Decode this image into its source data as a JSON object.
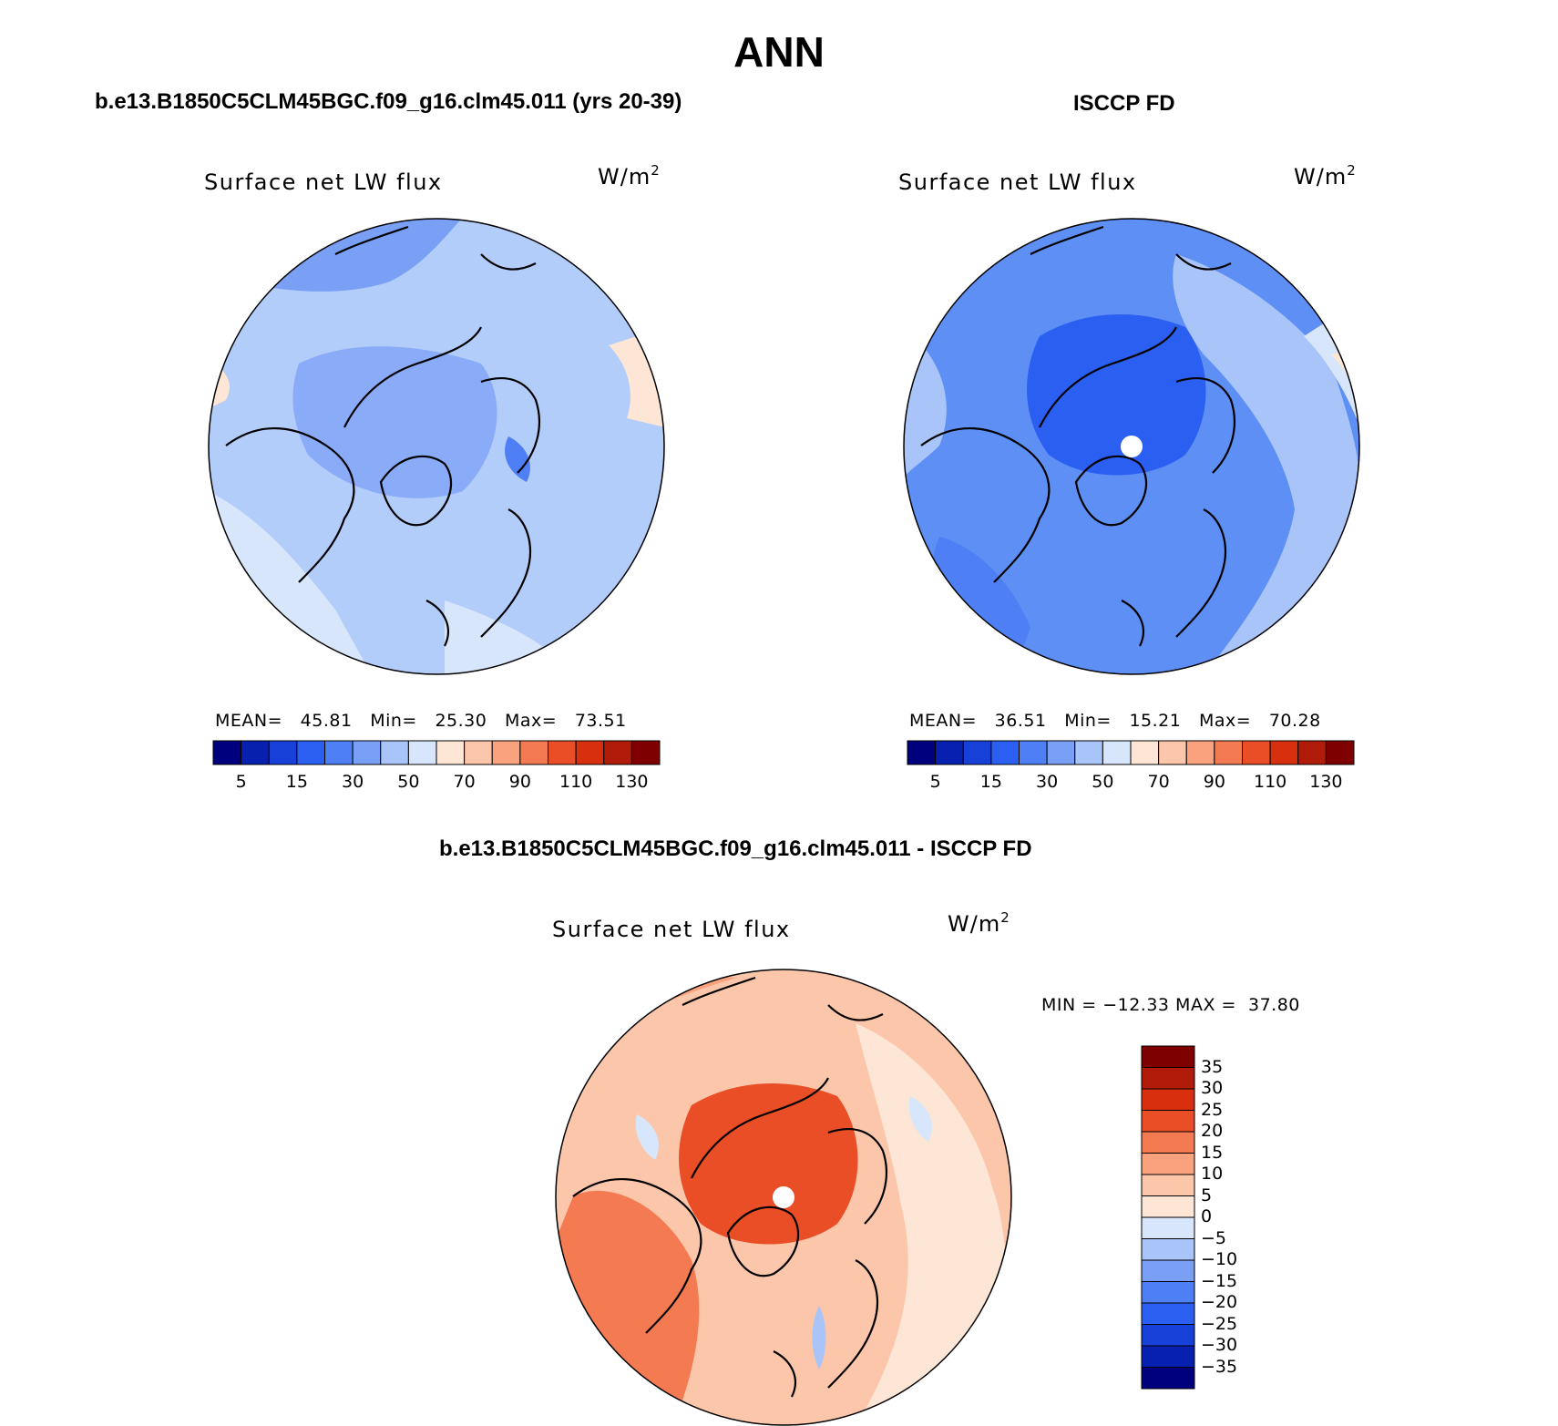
{
  "title": "ANN",
  "panels": [
    {
      "case_title": "b.e13.B1850C5CLM45BGC.f09_g16.clm45.011 (yrs 20-39)",
      "variable": "Surface net LW flux",
      "units_base": "W/m",
      "units_exp": "2",
      "stats": {
        "mean_label": "MEAN=",
        "mean": "45.81",
        "min_label": "Min=",
        "min": "25.30",
        "max_label": "Max=",
        "max": "73.51"
      },
      "dominant_fill": "#b3cdfb"
    },
    {
      "case_title": "ISCCP FD",
      "variable": "Surface net LW flux",
      "units_base": "W/m",
      "units_exp": "2",
      "stats": {
        "mean_label": "MEAN=",
        "mean": "36.51",
        "min_label": "Min=",
        "min": "15.21",
        "max_label": "Max=",
        "max": "70.28"
      },
      "dominant_fill": "#5e8ff4"
    },
    {
      "case_title": "b.e13.B1850C5CLM45BGC.f09_g16.clm45.011 - ISCCP FD",
      "variable": "Surface net LW flux",
      "units_base": "W/m",
      "units_exp": "2",
      "stats": {
        "label": "MIN = −12.33 MAX =  37.80"
      },
      "dominant_fill": "#fba07c"
    }
  ],
  "abs_colorbar": {
    "colors": [
      "#00007f",
      "#0820b0",
      "#1640d8",
      "#2b5ff2",
      "#4e7ff4",
      "#7aa0f6",
      "#a9c4f8",
      "#d7e6fb",
      "#fde6d5",
      "#fcc6aa",
      "#faa17e",
      "#f47a52",
      "#ea4e26",
      "#d8300f",
      "#b11b0a",
      "#7f0000"
    ],
    "tick_labels": [
      "5",
      "15",
      "30",
      "50",
      "70",
      "90",
      "110",
      "130"
    ]
  },
  "diff_colorbar": {
    "colors_bottom_to_top": [
      "#00007f",
      "#0820b0",
      "#1640d8",
      "#2b5ff2",
      "#4e7ff4",
      "#7aa0f6",
      "#a9c4f8",
      "#d7e6fb",
      "#fde6d5",
      "#fcc6aa",
      "#faa17e",
      "#f47a52",
      "#ea4e26",
      "#d8300f",
      "#b11b0a",
      "#7f0000"
    ],
    "tick_labels_top_to_bottom": [
      "35",
      "30",
      "25",
      "20",
      "15",
      "10",
      "5",
      "0",
      "−5",
      "−10",
      "−15",
      "−20",
      "−25",
      "−30",
      "−35"
    ]
  }
}
